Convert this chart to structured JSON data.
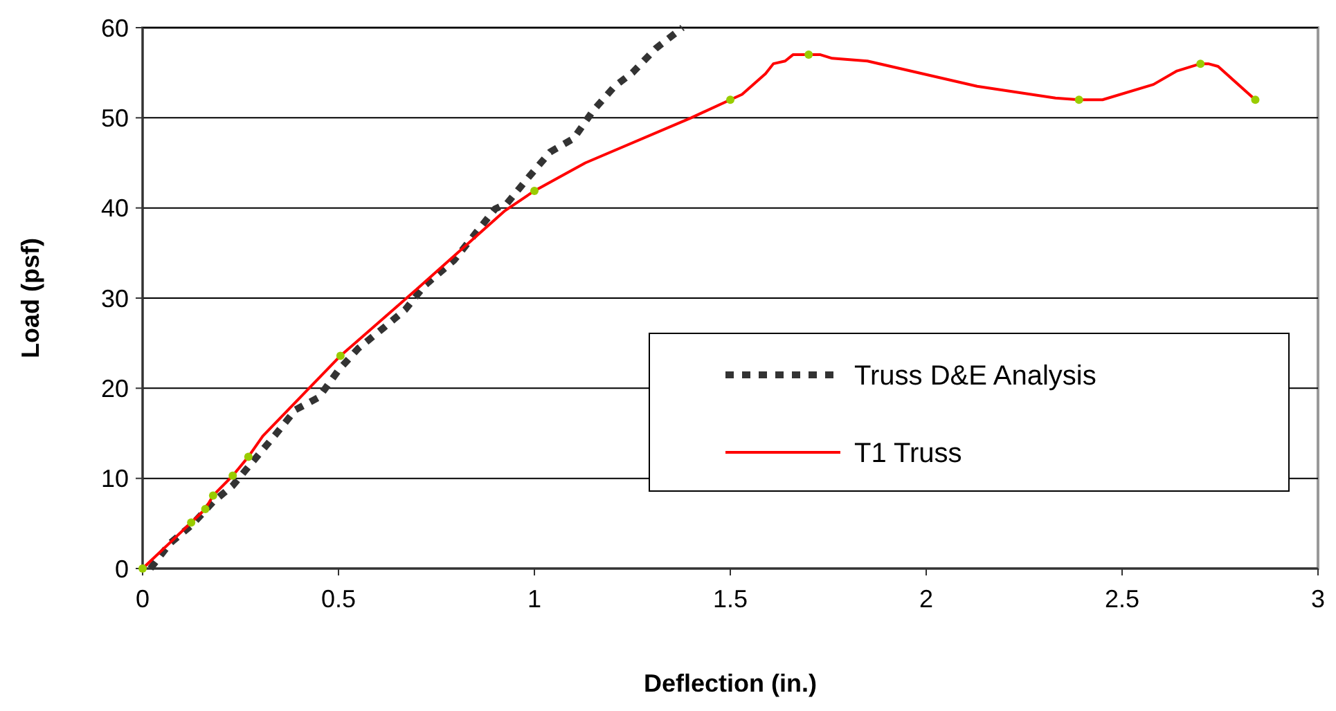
{
  "chart_data": {
    "type": "line",
    "xlabel": "Deflection (in.)",
    "ylabel": "Load (psf)",
    "xlim": [
      0,
      3
    ],
    "ylim": [
      0,
      60
    ],
    "xticks": [
      0,
      0.5,
      1,
      1.5,
      2,
      2.5,
      3
    ],
    "yticks": [
      0,
      10,
      20,
      30,
      40,
      50,
      60
    ],
    "grid": "y",
    "legend": "bottom right",
    "series": [
      {
        "name": "Truss D&E Analysis",
        "color": "#333333",
        "line_style": "dotted",
        "marker": "none",
        "x": [
          0.02,
          0.07,
          0.125,
          0.18,
          0.23,
          0.28,
          0.34,
          0.39,
          0.45,
          0.5,
          0.55,
          0.615,
          0.67,
          0.72,
          0.795,
          0.85,
          0.9,
          0.93,
          0.985,
          1.04,
          1.1,
          1.15,
          1.205,
          1.25,
          1.31,
          1.378
        ],
        "values": [
          0,
          2.8,
          4.8,
          7.4,
          9.2,
          11.8,
          14.9,
          17.6,
          19,
          22,
          24.4,
          26.7,
          28.7,
          31.4,
          34.2,
          37.2,
          39.9,
          40.5,
          43.4,
          46.2,
          47.7,
          50.8,
          53.5,
          55,
          57.7,
          60
        ]
      },
      {
        "name": "T1 Truss",
        "color": "#ff0000",
        "line_style": "solid",
        "marker": "none",
        "x": [
          0,
          0.124,
          0.16,
          0.18,
          0.23,
          0.27,
          0.307,
          0.505,
          0.7,
          0.925,
          1.0,
          1.13,
          1.4,
          1.5,
          1.53,
          1.59,
          1.61,
          1.64,
          1.66,
          1.7,
          1.73,
          1.76,
          1.85,
          2.13,
          2.33,
          2.39,
          2.45,
          2.58,
          2.64,
          2.7,
          2.72,
          2.745,
          2.84
        ],
        "values": [
          0,
          5.1,
          6.6,
          8.1,
          10.3,
          12.4,
          14.7,
          23.6,
          31,
          39.7,
          41.9,
          45,
          50,
          52,
          52.6,
          54.9,
          56,
          56.3,
          57,
          57,
          57,
          56.6,
          56.3,
          53.5,
          52.2,
          52,
          52,
          53.7,
          55.2,
          56,
          56,
          55.7,
          52
        ]
      },
      {
        "type": "scatter",
        "color": "#99cc00",
        "marker": "circle",
        "x": [
          0,
          0.124,
          0.16,
          0.18,
          0.23,
          0.27,
          0.505,
          1.0,
          1.5,
          1.7,
          2.39,
          2.7,
          2.84
        ],
        "values": [
          0,
          5.1,
          6.6,
          8.1,
          10.3,
          12.4,
          23.6,
          41.9,
          52,
          57,
          52,
          56,
          52
        ]
      }
    ]
  }
}
